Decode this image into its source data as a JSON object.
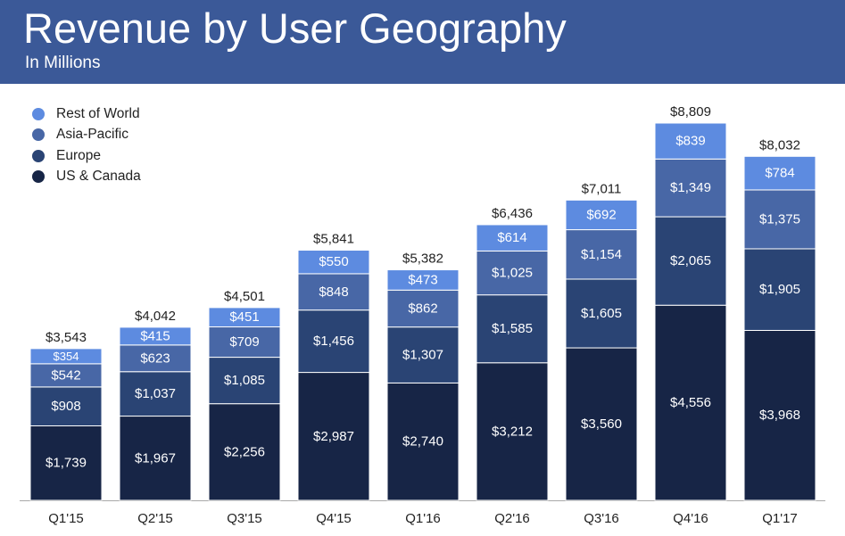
{
  "header": {
    "title": "Revenue by User Geography",
    "subtitle": "In Millions"
  },
  "colors": {
    "header_bg": "#3b5998",
    "US & Canada": "#172546",
    "Europe": "#2a4474",
    "Asia-Pacific": "#4867a6",
    "Rest of World": "#5d8be0",
    "axis": "#a8a8a8"
  },
  "chart_data": {
    "type": "bar",
    "stacked": true,
    "title": "Revenue by User Geography",
    "subtitle": "In Millions",
    "categories": [
      "Q1'15",
      "Q2'15",
      "Q3'15",
      "Q4'15",
      "Q1'16",
      "Q2'16",
      "Q3'16",
      "Q4'16",
      "Q1'17"
    ],
    "series": [
      {
        "name": "US & Canada",
        "values": [
          1739,
          1967,
          2256,
          2987,
          2740,
          3212,
          3560,
          4556,
          3968
        ]
      },
      {
        "name": "Europe",
        "values": [
          908,
          1037,
          1085,
          1456,
          1307,
          1585,
          1605,
          2065,
          1905
        ]
      },
      {
        "name": "Asia-Pacific",
        "values": [
          542,
          623,
          709,
          848,
          862,
          1025,
          1154,
          1349,
          1375
        ]
      },
      {
        "name": "Rest of World",
        "values": [
          354,
          415,
          451,
          550,
          473,
          614,
          692,
          839,
          784
        ]
      }
    ],
    "segment_labels": [
      [
        "$1,739",
        "$1,967",
        "$2,256",
        "$2,987",
        "$2,740",
        "$3,212",
        "$3,560",
        "$4,556",
        "$3,968"
      ],
      [
        "$908",
        "$1,037",
        "$1,085",
        "$1,456",
        "$1,307",
        "$1,585",
        "$1,605",
        "$2,065",
        "$1,905"
      ],
      [
        "$542",
        "$623",
        "$709",
        "$848",
        "$862",
        "$1,025",
        "$1,154",
        "$1,349",
        "$1,375"
      ],
      [
        "$354",
        "$415",
        "$451",
        "$550",
        "$473",
        "$614",
        "$692",
        "$839",
        "$784"
      ]
    ],
    "totals": [
      3543,
      4042,
      4501,
      5841,
      5382,
      6436,
      7011,
      8809,
      8032
    ],
    "total_labels": [
      "$3,543",
      "$4,042",
      "$4,501",
      "$5,841",
      "$5,382",
      "$6,436",
      "$7,011",
      "$8,809",
      "$8,032"
    ],
    "legend": [
      "Rest of World",
      "Asia-Pacific",
      "Europe",
      "US & Canada"
    ],
    "legend_position": "top-left",
    "grid": false,
    "ylim": [
      0,
      9000
    ]
  }
}
